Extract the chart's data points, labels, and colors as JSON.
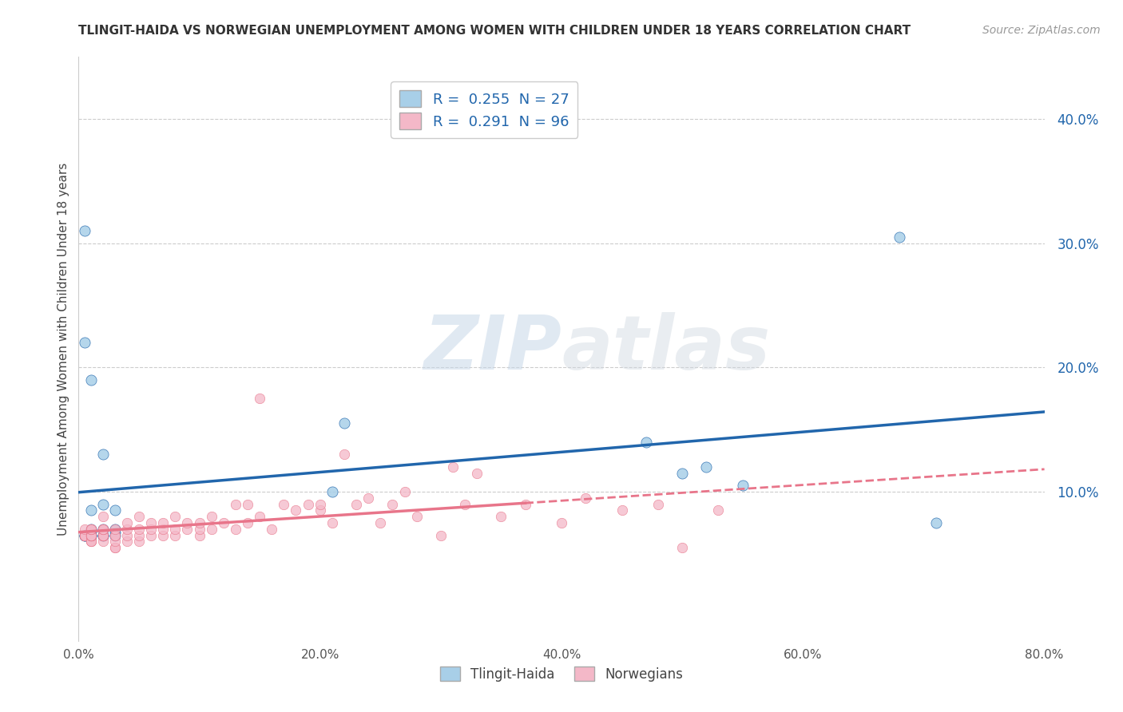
{
  "title": "TLINGIT-HAIDA VS NORWEGIAN UNEMPLOYMENT AMONG WOMEN WITH CHILDREN UNDER 18 YEARS CORRELATION CHART",
  "source": "Source: ZipAtlas.com",
  "ylabel": "Unemployment Among Women with Children Under 18 years",
  "xlabel_blue": "Tlingit-Haida",
  "xlabel_pink": "Norwegians",
  "xlim": [
    0.0,
    80.0
  ],
  "ylim": [
    -2.0,
    45.0
  ],
  "yticks": [
    10.0,
    20.0,
    30.0,
    40.0
  ],
  "xticks": [
    0.0,
    20.0,
    40.0,
    60.0,
    80.0
  ],
  "xtick_labels": [
    "0.0%",
    "20.0%",
    "40.0%",
    "60.0%",
    "80.0%"
  ],
  "ytick_labels": [
    "10.0%",
    "20.0%",
    "30.0%",
    "40.0%"
  ],
  "blue_R": 0.255,
  "blue_N": 27,
  "pink_R": 0.291,
  "pink_N": 96,
  "blue_color": "#a8cfe8",
  "pink_color": "#f4b8c8",
  "blue_line_color": "#2166ac",
  "pink_line_color": "#e8758a",
  "background_color": "#ffffff",
  "watermark_zip": "ZIP",
  "watermark_atlas": "atlas",
  "title_fontsize": 11,
  "blue_scatter_x": [
    2.0,
    1.0,
    1.0,
    2.0,
    3.0,
    1.0,
    3.0,
    2.0,
    2.0,
    1.0,
    0.5,
    0.5,
    1.0,
    1.0,
    0.5,
    2.0,
    3.0,
    0.5,
    3.0,
    21.0,
    22.0,
    47.0,
    50.0,
    52.0,
    55.0,
    68.0,
    71.0
  ],
  "blue_scatter_y": [
    7.0,
    6.5,
    7.0,
    6.5,
    6.7,
    6.8,
    7.0,
    13.0,
    9.0,
    8.5,
    31.0,
    22.0,
    19.0,
    6.5,
    6.5,
    6.5,
    8.5,
    6.5,
    6.5,
    10.0,
    15.5,
    14.0,
    11.5,
    12.0,
    10.5,
    30.5,
    7.5
  ],
  "pink_scatter_x": [
    0.5,
    0.5,
    0.5,
    0.5,
    0.5,
    0.5,
    0.5,
    0.5,
    0.5,
    0.5,
    1.0,
    1.0,
    1.0,
    1.0,
    1.0,
    1.0,
    1.0,
    1.0,
    1.0,
    1.0,
    1.0,
    1.0,
    1.0,
    2.0,
    2.0,
    2.0,
    2.0,
    2.0,
    2.0,
    2.0,
    2.0,
    2.0,
    2.0,
    3.0,
    3.0,
    3.0,
    3.0,
    3.0,
    3.0,
    4.0,
    4.0,
    4.0,
    4.0,
    5.0,
    5.0,
    5.0,
    5.0,
    6.0,
    6.0,
    6.0,
    7.0,
    7.0,
    7.0,
    8.0,
    8.0,
    8.0,
    9.0,
    9.0,
    10.0,
    10.0,
    10.0,
    11.0,
    11.0,
    12.0,
    13.0,
    13.0,
    14.0,
    14.0,
    15.0,
    15.0,
    16.0,
    17.0,
    18.0,
    19.0,
    20.0,
    20.0,
    21.0,
    22.0,
    23.0,
    24.0,
    25.0,
    26.0,
    27.0,
    28.0,
    30.0,
    31.0,
    32.0,
    33.0,
    35.0,
    37.0,
    40.0,
    42.0,
    45.0,
    48.0,
    50.0,
    53.0
  ],
  "pink_scatter_y": [
    6.5,
    6.5,
    6.5,
    6.5,
    6.5,
    6.5,
    6.5,
    6.5,
    6.5,
    7.0,
    6.0,
    6.0,
    6.0,
    6.5,
    6.5,
    6.5,
    6.5,
    6.5,
    6.5,
    6.5,
    7.0,
    7.0,
    7.0,
    6.0,
    6.5,
    6.5,
    6.5,
    6.5,
    6.5,
    7.0,
    7.0,
    7.0,
    8.0,
    5.5,
    5.5,
    6.0,
    6.5,
    6.5,
    7.0,
    6.0,
    6.5,
    7.0,
    7.5,
    6.0,
    6.5,
    7.0,
    8.0,
    6.5,
    7.0,
    7.5,
    6.5,
    7.0,
    7.5,
    6.5,
    7.0,
    8.0,
    7.0,
    7.5,
    6.5,
    7.0,
    7.5,
    7.0,
    8.0,
    7.5,
    7.0,
    9.0,
    7.5,
    9.0,
    17.5,
    8.0,
    7.0,
    9.0,
    8.5,
    9.0,
    8.5,
    9.0,
    7.5,
    13.0,
    9.0,
    9.5,
    7.5,
    9.0,
    10.0,
    8.0,
    6.5,
    12.0,
    9.0,
    11.5,
    8.0,
    9.0,
    7.5,
    9.5,
    8.5,
    9.0,
    5.5,
    8.5
  ],
  "pink_solid_end_x": 37.0
}
